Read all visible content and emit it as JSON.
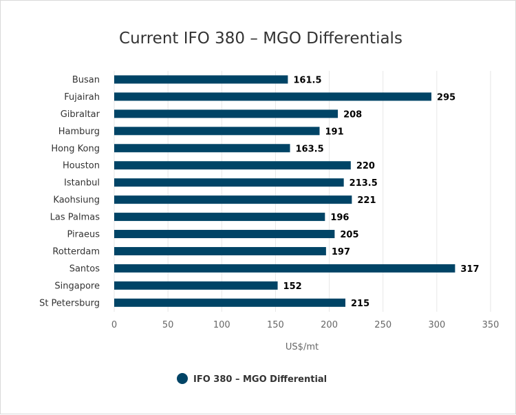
{
  "chart_data": {
    "type": "bar",
    "orientation": "horizontal",
    "title": "Current IFO 380 – MGO Differentials",
    "categories": [
      "Busan",
      "Fujairah",
      "Gibraltar",
      "Hamburg",
      "Hong Kong",
      "Houston",
      "Istanbul",
      "Kaohsiung",
      "Las Palmas",
      "Piraeus",
      "Rotterdam",
      "Santos",
      "Singapore",
      "St Petersburg"
    ],
    "series": [
      {
        "name": "IFO 380 – MGO Differential",
        "values": [
          161.5,
          295,
          208,
          191,
          163.5,
          220,
          213.5,
          221,
          196,
          205,
          197,
          317,
          152,
          215
        ],
        "labels": [
          "161.5",
          "295",
          "208",
          "191",
          "163.5",
          "220",
          "213.5",
          "221",
          "196",
          "205",
          "197",
          "317",
          "152",
          "215"
        ]
      }
    ],
    "xlabel": "US$/mt",
    "ylabel": "",
    "xlim": [
      0,
      350
    ],
    "xticks": [
      0,
      50,
      100,
      150,
      200,
      250,
      300,
      350
    ],
    "xtick_labels": [
      "0",
      "50",
      "100",
      "150",
      "200",
      "250",
      "300",
      "350"
    ],
    "grid": "vertical",
    "legend": "bottom-center",
    "colors": {
      "bar": "#004466",
      "grid": "#e6e6e6"
    }
  }
}
